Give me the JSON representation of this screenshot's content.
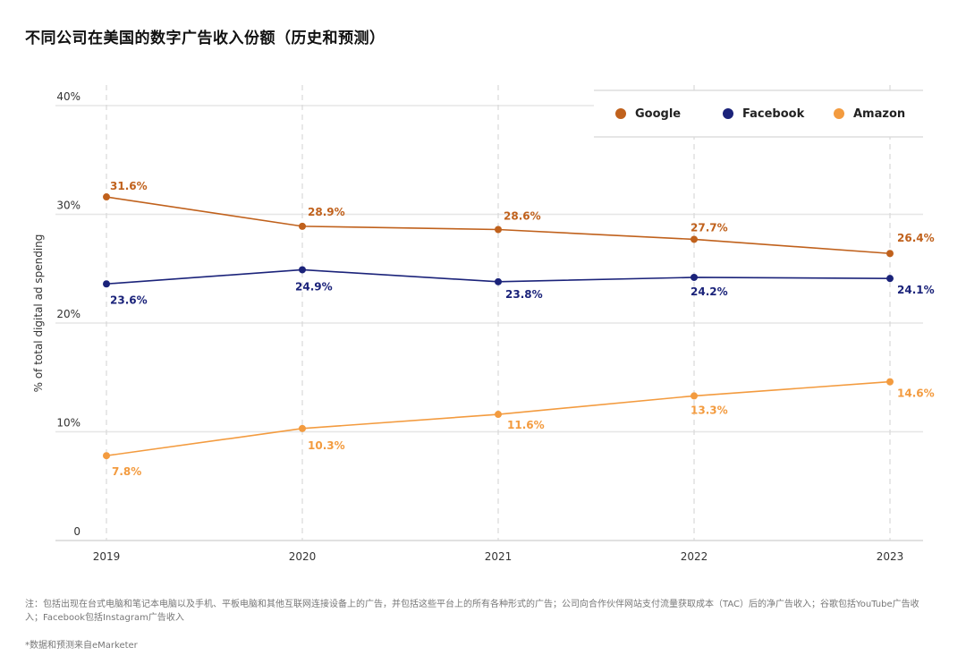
{
  "title": "不同公司在美国的数字广告收入份额（历史和预测）",
  "chart_data": {
    "type": "line",
    "x": [
      "2019",
      "2020",
      "2021",
      "2022",
      "2023"
    ],
    "y_ticks": [
      "0",
      "10%",
      "20%",
      "30%",
      "40%"
    ],
    "ylim": [
      0,
      40
    ],
    "ylabel": "% of total digital ad spending",
    "grid": true,
    "legend_position": "top-right",
    "series": [
      {
        "name": "Google",
        "color": "#c0611c",
        "values": [
          31.6,
          28.9,
          28.6,
          27.7,
          26.4
        ],
        "labels": [
          "31.6%",
          "28.9%",
          "28.6%",
          "27.7%",
          "26.4%"
        ]
      },
      {
        "name": "Facebook",
        "color": "#1b237a",
        "values": [
          23.6,
          24.9,
          23.8,
          24.2,
          24.1
        ],
        "labels": [
          "23.6%",
          "24.9%",
          "23.8%",
          "24.2%",
          "24.1%"
        ]
      },
      {
        "name": "Amazon",
        "color": "#f39b3f",
        "values": [
          7.8,
          10.3,
          11.6,
          13.3,
          14.6
        ],
        "labels": [
          "7.8%",
          "10.3%",
          "11.6%",
          "13.3%",
          "14.6%"
        ]
      }
    ]
  },
  "footnote": "注：包括出现在台式电脑和笔记本电脑以及手机、平板电脑和其他互联网连接设备上的广告，并包括这些平台上的所有各种形式的广告；公司向合作伙伴网站支付流量获取成本（TAC）后的净广告收入；谷歌包括YouTube广告收入；Facebook包括Instagram广告收入",
  "source": "*数据和预测来自eMarketer"
}
